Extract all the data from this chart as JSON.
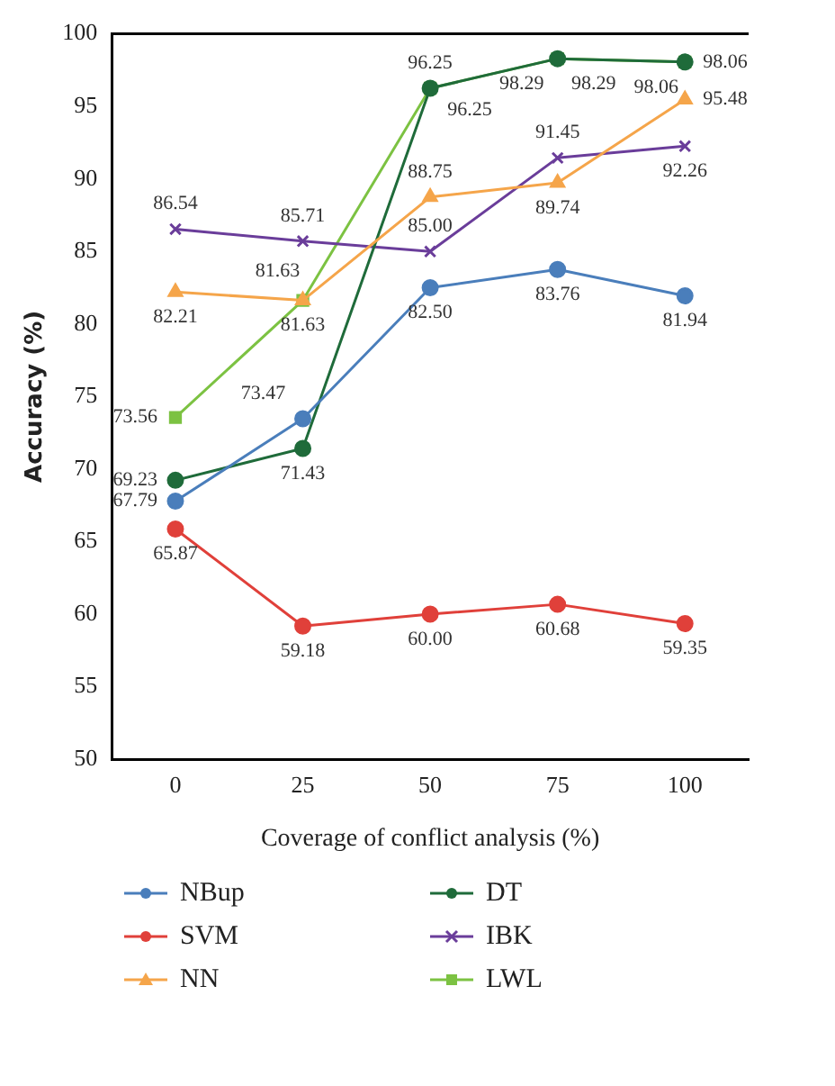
{
  "chart_data": {
    "type": "line",
    "xlabel": "Coverage of conflict analysis (%)",
    "ylabel": "Accuracy (%)",
    "categories": [
      "0",
      "25",
      "50",
      "75",
      "100"
    ],
    "ylim": [
      50,
      100
    ],
    "yticks": [
      50,
      55,
      60,
      65,
      70,
      75,
      80,
      85,
      90,
      95,
      100
    ],
    "grid": false,
    "legend": "bottom",
    "line_style": "solid",
    "series": [
      {
        "name": "NBup",
        "color": "#4a7ebb",
        "marker": "circle",
        "values": [
          67.79,
          73.47,
          82.5,
          83.76,
          81.94
        ],
        "value_labels": [
          "67.79",
          "73.47",
          "82.50",
          "83.76",
          "81.94"
        ]
      },
      {
        "name": "SVM",
        "color": "#e0403a",
        "marker": "circle",
        "values": [
          65.87,
          59.18,
          60.0,
          60.68,
          59.35
        ],
        "value_labels": [
          "65.87",
          "59.18",
          "60.00",
          "60.68",
          "59.35"
        ]
      },
      {
        "name": "NN",
        "color": "#f5a54a",
        "marker": "triangle",
        "values": [
          82.21,
          81.63,
          88.75,
          89.74,
          95.48
        ],
        "value_labels": [
          "82.21",
          "81.63",
          "88.75",
          "89.74",
          "95.48"
        ]
      },
      {
        "name": "DT",
        "color": "#1f6b3a",
        "marker": "circle",
        "values": [
          69.23,
          71.43,
          96.25,
          98.29,
          98.06
        ],
        "value_labels": [
          "69.23",
          "71.43",
          "96.25",
          "98.29",
          "98.06"
        ]
      },
      {
        "name": "IBK",
        "color": "#6a3d9a",
        "marker": "cross",
        "values": [
          86.54,
          85.71,
          85.0,
          91.45,
          92.26
        ],
        "value_labels": [
          "86.54",
          "85.71",
          "85.00",
          "91.45",
          "92.26"
        ]
      },
      {
        "name": "LWL",
        "color": "#7cc242",
        "marker": "square",
        "values": [
          73.56,
          81.63,
          96.25,
          98.29,
          98.06
        ],
        "value_labels": [
          "73.56",
          "81.63",
          "96.25",
          "98.29",
          "98.06"
        ]
      }
    ]
  }
}
